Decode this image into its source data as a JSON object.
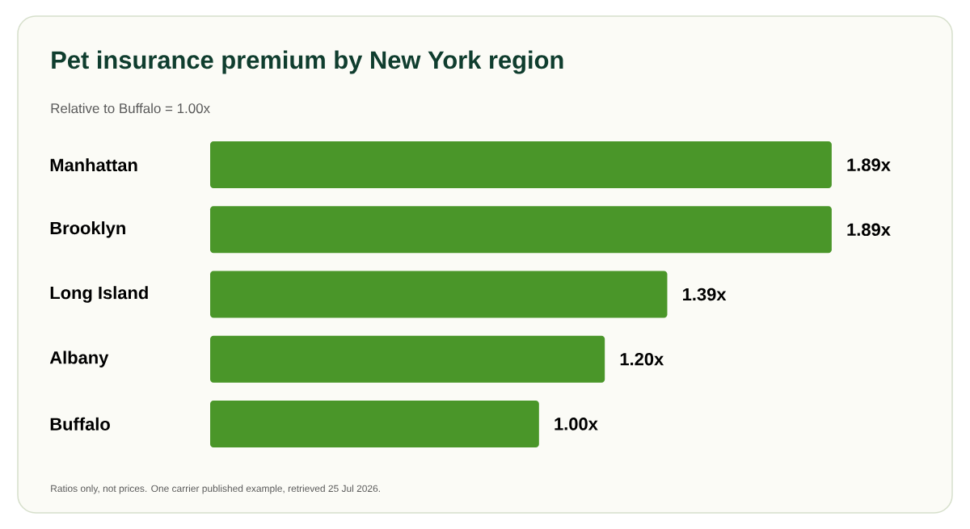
{
  "chart_data": {
    "type": "bar",
    "orientation": "horizontal",
    "title": "Pet insurance premium by New York region",
    "subtitle": "Relative to Buffalo = 1.00x",
    "categories": [
      "Manhattan",
      "Brooklyn",
      "Long Island",
      "Albany",
      "Buffalo"
    ],
    "values": [
      1.89,
      1.89,
      1.39,
      1.2,
      1.0
    ],
    "value_labels": [
      "1.89x",
      "1.89x",
      "1.39x",
      "1.20x",
      "1.00x"
    ],
    "color": "#4a9629",
    "tick_labels": "y",
    "annotations": [
      "Ratios only, not prices. One carrier published example, retrieved 25 Jul 2026."
    ]
  }
}
